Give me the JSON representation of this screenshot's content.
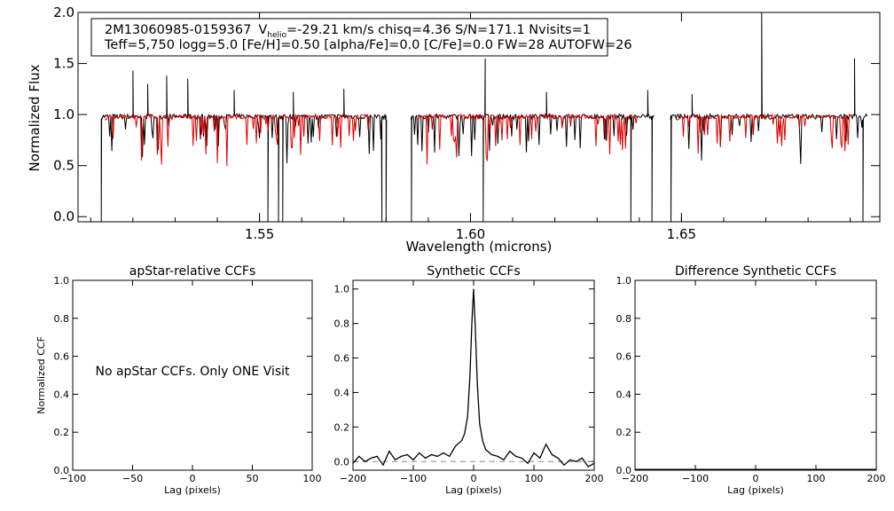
{
  "chart_data": [
    {
      "type": "line",
      "info_line1": {
        "star": "2M13060985-0159367",
        "v": "V",
        "v_sub": "helio",
        "rest": "=-29.21 km/s  chisq=4.36  S/N=171.1  Nvisits=1"
      },
      "info_line2": "Teff=5,750 logg=5.0 [Fe/H]=0.50 [alpha/Fe]=0.0 [C/Fe]=0.0 FW=28 AUTOFW=26",
      "xlabel": "Wavelength (microns)",
      "ylabel": "Normalized Flux",
      "xlim": [
        1.507,
        1.697
      ],
      "ylim": [
        -0.05,
        2.0
      ],
      "xticks": [
        1.55,
        1.6,
        1.65
      ],
      "xtick_labels": [
        "1.55",
        "1.60",
        "1.65"
      ],
      "yticks": [
        0.0,
        0.5,
        1.0,
        1.5,
        2.0
      ],
      "ytick_labels": [
        "0.0",
        "0.5",
        "1.0",
        "1.5",
        "2.0"
      ],
      "chips": [
        [
          1.5125,
          1.58
        ],
        [
          1.586,
          1.6435
        ],
        [
          1.6475,
          1.694
        ]
      ],
      "series": [
        {
          "color": "#000000"
        },
        {
          "color": "#dd0000"
        }
      ],
      "emission_lines": [
        [
          1.52,
          1.43
        ],
        [
          1.5235,
          1.3
        ],
        [
          1.528,
          1.38
        ],
        [
          1.533,
          1.35
        ],
        [
          1.544,
          1.24
        ],
        [
          1.558,
          1.22
        ],
        [
          1.57,
          1.25
        ],
        [
          1.6035,
          1.55
        ],
        [
          1.618,
          1.22
        ],
        [
          1.642,
          1.24
        ],
        [
          1.6525,
          1.2
        ],
        [
          1.669,
          2.0
        ],
        [
          1.691,
          1.55
        ]
      ],
      "absorption_drops": [
        [
          1.5125,
          -0.05
        ],
        [
          1.552,
          -0.05
        ],
        [
          1.5545,
          -0.05
        ],
        [
          1.5555,
          -0.05
        ],
        [
          1.579,
          -0.05
        ],
        [
          1.58,
          -0.05
        ],
        [
          1.586,
          -0.05
        ],
        [
          1.603,
          -0.05
        ],
        [
          1.638,
          -0.05
        ],
        [
          1.643,
          -0.05
        ],
        [
          1.6475,
          -0.05
        ],
        [
          1.693,
          -0.05
        ]
      ]
    },
    {
      "type": "line",
      "title": "apStar-relative CCFs",
      "ylabel": "Normalized CCF",
      "xlabel": "Lag (pixels)",
      "xlim": [
        -100,
        100
      ],
      "ylim": [
        0.0,
        1.0
      ],
      "xticks": [
        -100,
        -50,
        0,
        50,
        100
      ],
      "xtick_labels": [
        "−100",
        "−50",
        "0",
        "50",
        "100"
      ],
      "yticks": [
        0.0,
        0.2,
        0.4,
        0.6,
        0.8,
        1.0
      ],
      "ytick_labels": [
        "0.0",
        "0.2",
        "0.4",
        "0.6",
        "0.8",
        "1.0"
      ],
      "annotation": "No apStar CCFs.  Only ONE Visit",
      "series": []
    },
    {
      "type": "line",
      "title": "Synthetic CCFs",
      "xlabel": "Lag (pixels)",
      "xlim": [
        -200,
        200
      ],
      "ylim": [
        -0.05,
        1.05
      ],
      "xticks": [
        -200,
        -100,
        0,
        100,
        200
      ],
      "xtick_labels": [
        "−200",
        "−100",
        "0",
        "100",
        "200"
      ],
      "yticks": [
        0.0,
        0.2,
        0.4,
        0.6,
        0.8,
        1.0
      ],
      "ytick_labels": [
        "0.0",
        "0.2",
        "0.4",
        "0.6",
        "0.8",
        "1.0"
      ],
      "reference_line": 0.0,
      "series": [
        {
          "color": "#000000",
          "x": [
            -200,
            -190,
            -180,
            -170,
            -160,
            -150,
            -140,
            -130,
            -120,
            -110,
            -100,
            -90,
            -80,
            -70,
            -60,
            -50,
            -40,
            -30,
            -20,
            -15,
            -10,
            -6,
            -3,
            0,
            3,
            6,
            10,
            15,
            20,
            30,
            40,
            50,
            60,
            70,
            80,
            90,
            100,
            110,
            120,
            130,
            140,
            150,
            160,
            170,
            180,
            190,
            200
          ],
          "y": [
            -0.01,
            0.03,
            0.0,
            0.02,
            0.03,
            -0.02,
            0.06,
            0.01,
            0.03,
            0.04,
            0.01,
            0.05,
            0.02,
            0.04,
            0.03,
            0.05,
            0.03,
            0.09,
            0.12,
            0.16,
            0.26,
            0.5,
            0.8,
            1.0,
            0.76,
            0.46,
            0.22,
            0.12,
            0.07,
            0.04,
            0.03,
            0.01,
            0.06,
            0.03,
            0.02,
            -0.01,
            0.05,
            0.02,
            0.1,
            0.04,
            0.02,
            -0.02,
            0.01,
            0.0,
            0.02,
            -0.03,
            -0.01
          ]
        }
      ]
    },
    {
      "type": "line",
      "title": "Difference Synthetic CCFs",
      "xlabel": "Lag (pixels)",
      "xlim": [
        -200,
        200
      ],
      "ylim": [
        0.0,
        1.0
      ],
      "xticks": [
        -200,
        -100,
        0,
        100,
        200
      ],
      "xtick_labels": [
        "−200",
        "−100",
        "0",
        "100",
        "200"
      ],
      "yticks": [
        0.0,
        0.2,
        0.4,
        0.6,
        0.8,
        1.0
      ],
      "ytick_labels": [
        "0.0",
        "0.2",
        "0.4",
        "0.6",
        "0.8",
        "1.0"
      ],
      "series": [
        {
          "color": "#000000",
          "x": [
            -200,
            200
          ],
          "y": [
            0.0,
            0.0
          ]
        }
      ]
    }
  ]
}
